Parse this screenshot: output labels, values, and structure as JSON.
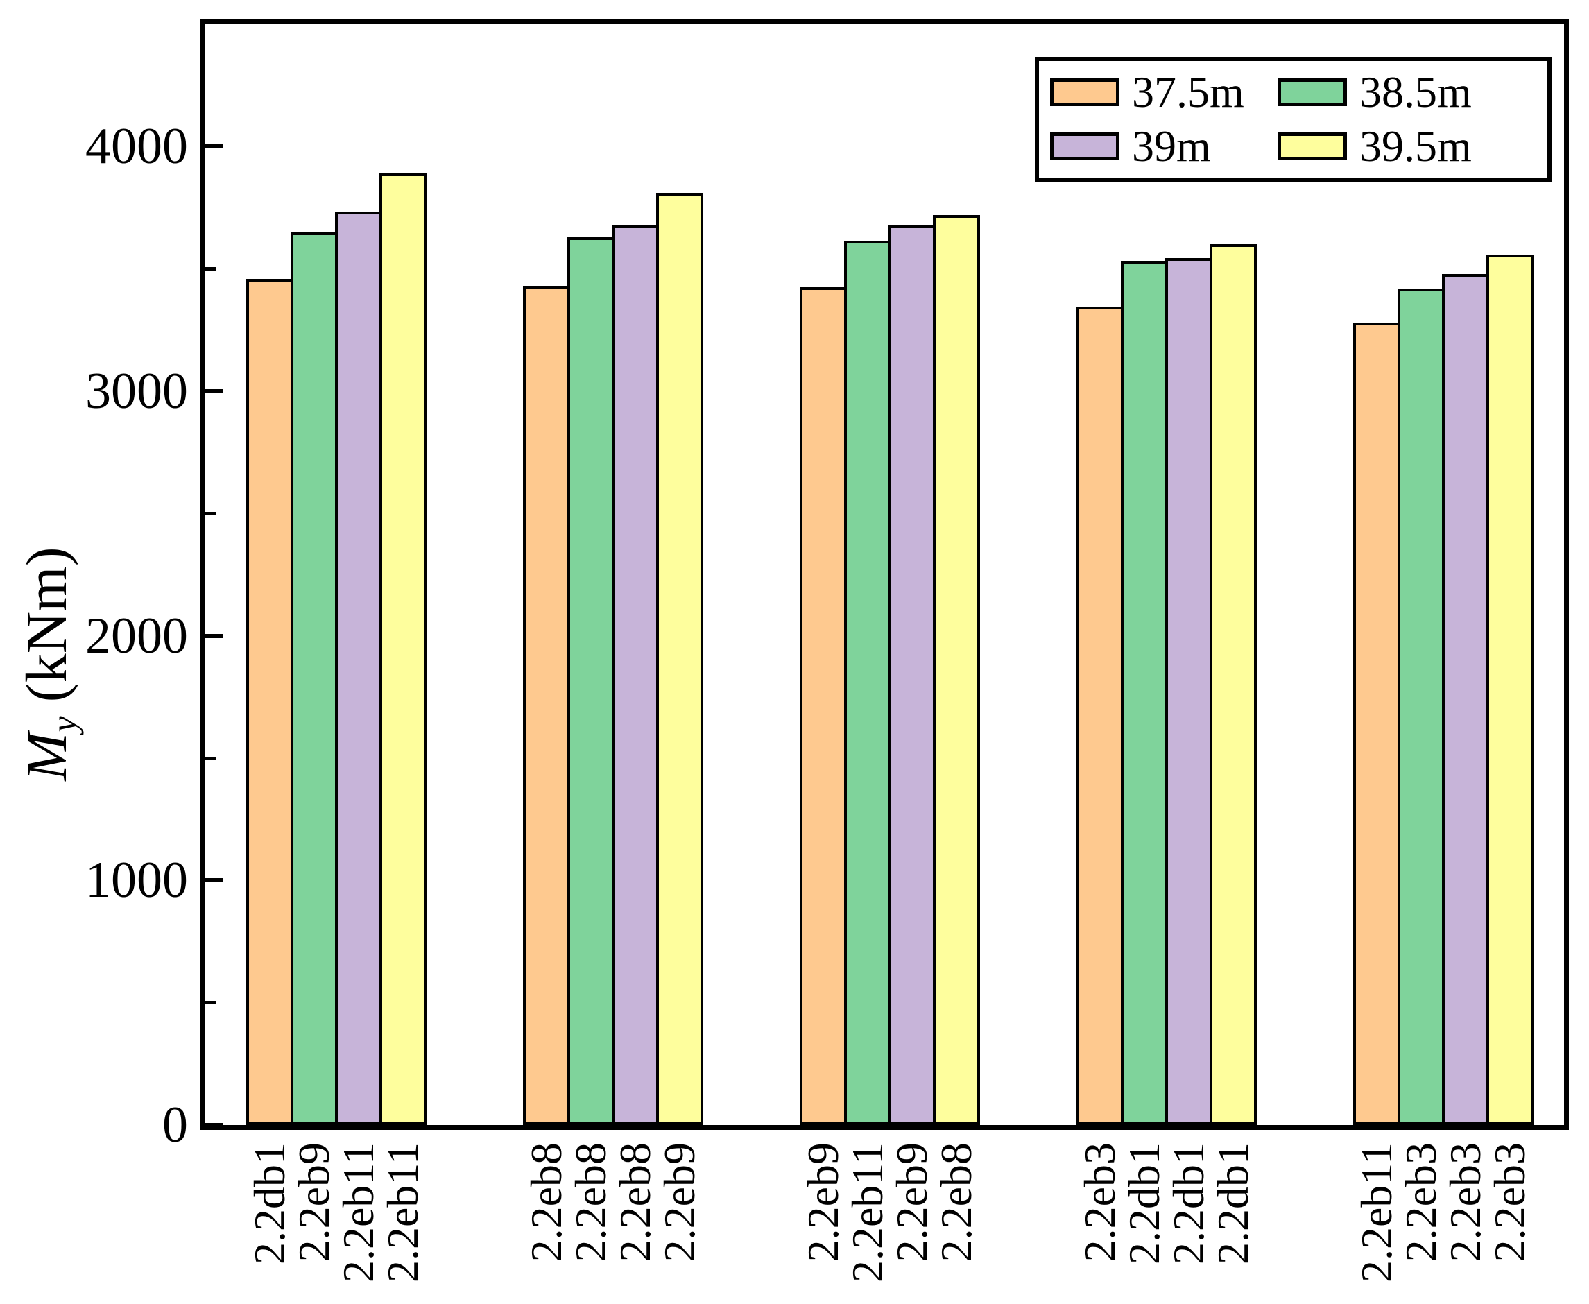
{
  "chart_data": {
    "type": "bar",
    "title": "",
    "xlabel": "",
    "ylabel": {
      "symbol": "M",
      "subscript": "y",
      "unit": "(kNm)"
    },
    "ylim": [
      0,
      4500
    ],
    "yticks_major": [
      0,
      1000,
      2000,
      3000,
      4000
    ],
    "yticks_minor": [
      500,
      1500,
      2500,
      3500
    ],
    "grid": false,
    "legend_position": "top-right",
    "bar_edge_color": "#000000",
    "series": [
      {
        "name": "37.5m",
        "color": "#FEC98F",
        "values": [
          3460,
          3430,
          3425,
          3345,
          3280
        ]
      },
      {
        "name": "38.5m",
        "color": "#7FD39B",
        "values": [
          3650,
          3630,
          3615,
          3530,
          3420
        ]
      },
      {
        "name": "39m",
        "color": "#C7B4D9",
        "values": [
          3735,
          3680,
          3680,
          3545,
          3480
        ]
      },
      {
        "name": "39.5m",
        "color": "#FEFE9D",
        "values": [
          3890,
          3810,
          3720,
          3600,
          3560
        ]
      }
    ],
    "bar_labels": [
      [
        "2.2db1",
        "2.2eb9",
        "2.2eb11",
        "2.2eb11"
      ],
      [
        "2.2eb8",
        "2.2eb8",
        "2.2eb8",
        "2.2eb9"
      ],
      [
        "2.2eb9",
        "2.2eb11",
        "2.2eb9",
        "2.2eb8"
      ],
      [
        "2.2eb3",
        "2.2db1",
        "2.2db1",
        "2.2db1"
      ],
      [
        "2.2eb11",
        "2.2eb3",
        "2.2eb3",
        "2.2eb3"
      ]
    ]
  }
}
